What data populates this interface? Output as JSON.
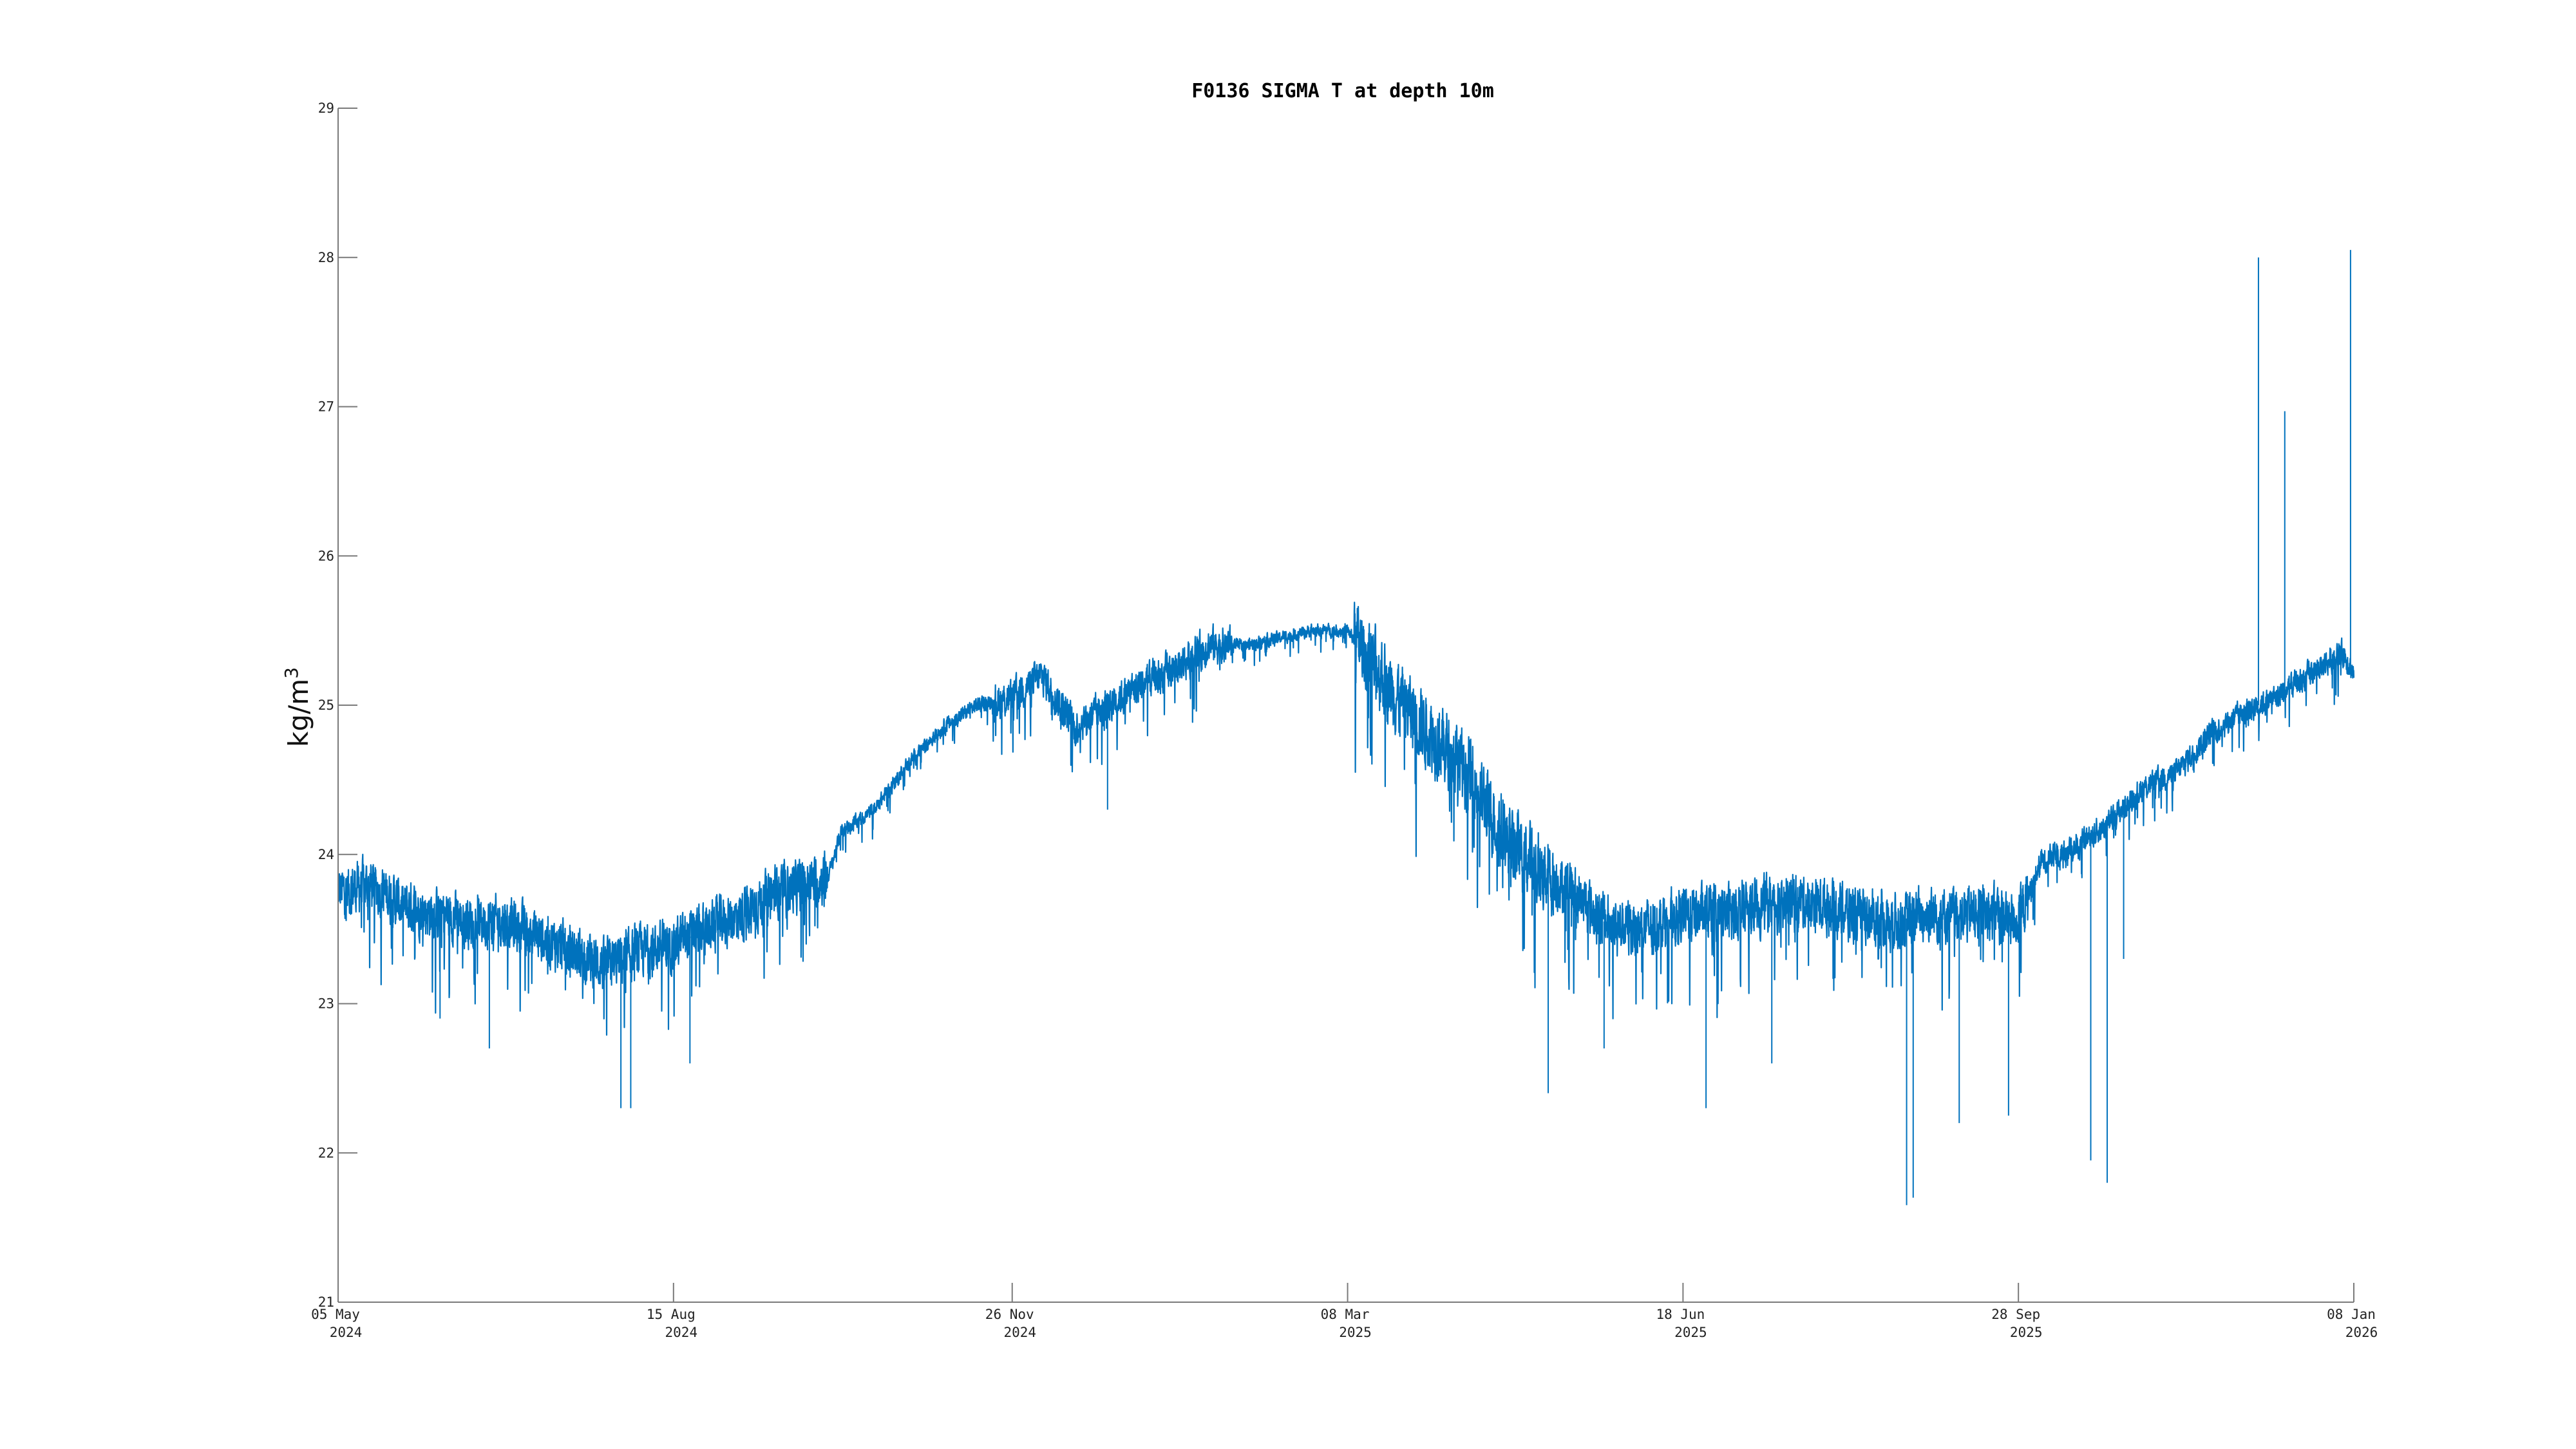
{
  "chart_data": {
    "type": "line",
    "title": "F0136 SIGMA T at depth 10m",
    "ylabel": "kg/m",
    "ylabel_superscript": "3",
    "xlabel": "",
    "ylim": [
      21,
      29
    ],
    "xlim": [
      "2024-05-05",
      "2026-01-08"
    ],
    "yticks": [
      21,
      22,
      23,
      24,
      25,
      26,
      27,
      28,
      29
    ],
    "xticks": [
      {
        "date": "2024-05-05",
        "line1": "05 May",
        "line2": "2024"
      },
      {
        "date": "2024-08-15",
        "line1": "15 Aug",
        "line2": "2024"
      },
      {
        "date": "2024-11-26",
        "line1": "26 Nov",
        "line2": "2024"
      },
      {
        "date": "2025-03-08",
        "line1": "08 Mar",
        "line2": "2025"
      },
      {
        "date": "2025-06-18",
        "line1": "18 Jun",
        "line2": "2025"
      },
      {
        "date": "2025-09-28",
        "line1": "28 Sep",
        "line2": "2025"
      },
      {
        "date": "2026-01-08",
        "line1": "08 Jan",
        "line2": "2026"
      }
    ],
    "grid": false,
    "line_color": "#0072BD",
    "series": [
      {
        "x": [
          "2024-05-05",
          "2024-05-15",
          "2024-05-25",
          "2024-06-05",
          "2024-06-15",
          "2024-06-25",
          "2024-07-05",
          "2024-07-15",
          "2024-07-25",
          "2024-08-05",
          "2024-08-15",
          "2024-08-25",
          "2024-09-05",
          "2024-09-15",
          "2024-09-25",
          "2024-10-01",
          "2024-10-05",
          "2024-10-15",
          "2024-10-25",
          "2024-11-05",
          "2024-11-15",
          "2024-11-26",
          "2024-12-05",
          "2024-12-15",
          "2024-12-25",
          "2025-01-05",
          "2025-01-15",
          "2025-01-25",
          "2025-02-05",
          "2025-02-15",
          "2025-02-25",
          "2025-03-08",
          "2025-03-15",
          "2025-03-25",
          "2025-04-05",
          "2025-04-15",
          "2025-04-25",
          "2025-05-05",
          "2025-05-15",
          "2025-05-25",
          "2025-06-05",
          "2025-06-18",
          "2025-06-30",
          "2025-07-10",
          "2025-07-20",
          "2025-08-01",
          "2025-08-10",
          "2025-08-20",
          "2025-09-01",
          "2025-09-10",
          "2025-09-20",
          "2025-09-28",
          "2025-10-05",
          "2025-10-15",
          "2025-10-25",
          "2025-11-05",
          "2025-11-15",
          "2025-11-25",
          "2025-12-05",
          "2025-12-15",
          "2025-12-25",
          "2026-01-01",
          "2026-01-05",
          "2026-01-08"
        ],
        "values": [
          23.75,
          23.8,
          23.65,
          23.6,
          23.55,
          23.55,
          23.45,
          23.35,
          23.25,
          23.35,
          23.4,
          23.5,
          23.6,
          23.75,
          23.8,
          23.85,
          24.15,
          24.3,
          24.6,
          24.85,
          25.0,
          25.05,
          25.2,
          24.85,
          25.0,
          25.15,
          25.25,
          25.4,
          25.4,
          25.45,
          25.5,
          25.5,
          25.3,
          25.0,
          24.75,
          24.5,
          24.1,
          23.9,
          23.75,
          23.55,
          23.5,
          23.6,
          23.6,
          23.65,
          23.7,
          23.65,
          23.6,
          23.55,
          23.6,
          23.6,
          23.6,
          23.55,
          23.95,
          24.05,
          24.2,
          24.45,
          24.55,
          24.8,
          24.95,
          25.05,
          25.2,
          25.3,
          25.35,
          25.2
        ]
      }
    ],
    "spikes": [
      {
        "x": "2024-06-05",
        "y": 22.9
      },
      {
        "x": "2024-06-20",
        "y": 22.7
      },
      {
        "x": "2024-07-30",
        "y": 22.3
      },
      {
        "x": "2024-08-02",
        "y": 22.3
      },
      {
        "x": "2024-08-20",
        "y": 22.6
      },
      {
        "x": "2024-12-25",
        "y": 24.3
      },
      {
        "x": "2025-05-08",
        "y": 22.4
      },
      {
        "x": "2025-05-25",
        "y": 22.7
      },
      {
        "x": "2025-06-25",
        "y": 22.3
      },
      {
        "x": "2025-07-15",
        "y": 22.6
      },
      {
        "x": "2025-08-25",
        "y": 21.65
      },
      {
        "x": "2025-08-27",
        "y": 21.7
      },
      {
        "x": "2025-09-10",
        "y": 22.2
      },
      {
        "x": "2025-09-25",
        "y": 22.25
      },
      {
        "x": "2025-10-20",
        "y": 21.95
      },
      {
        "x": "2025-10-25",
        "y": 21.8
      },
      {
        "x": "2025-10-30",
        "y": 23.3
      },
      {
        "x": "2025-12-10",
        "y": 28.0
      },
      {
        "x": "2025-12-18",
        "y": 26.97
      },
      {
        "x": "2026-01-07",
        "y": 28.05
      }
    ]
  }
}
